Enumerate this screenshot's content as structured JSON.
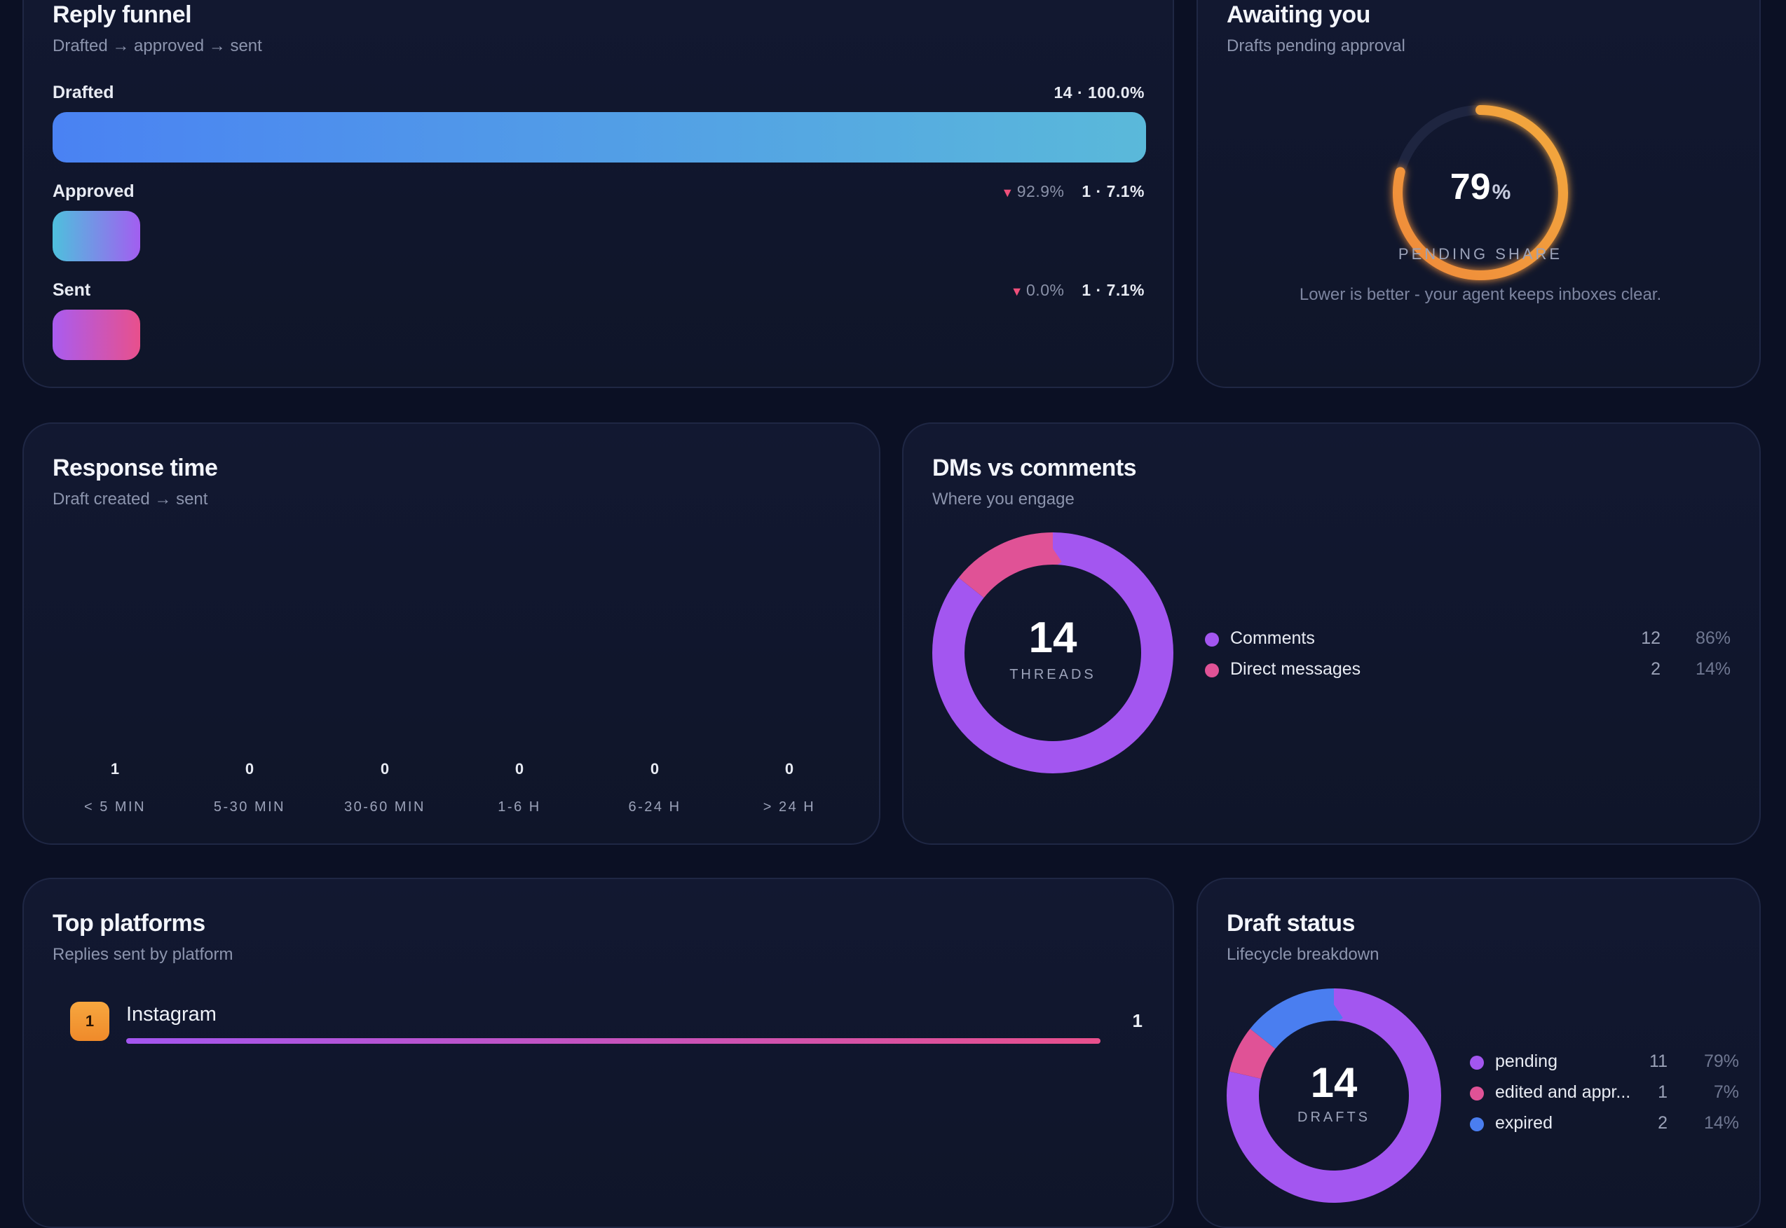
{
  "funnel": {
    "title": "Reply funnel",
    "subtitle": "Drafted → approved → sent",
    "stages": [
      {
        "label": "Drafted",
        "drop": "",
        "stat": "14 · 100.0%",
        "fraction": 1.0
      },
      {
        "label": "Approved",
        "drop": "92.9%",
        "stat": "1 · 7.1%",
        "fraction": 0.071
      },
      {
        "label": "Sent",
        "drop": "0.0%",
        "stat": "1 · 7.1%",
        "fraction": 0.071
      }
    ]
  },
  "awaiting": {
    "title": "Awaiting you",
    "subtitle": "Drafts pending approval",
    "value": "79",
    "unit": "%",
    "fraction": 0.79,
    "label": "PENDING SHARE",
    "note": "Lower is better - your agent keeps inboxes clear."
  },
  "response": {
    "title": "Response time",
    "subtitle": "Draft created → sent",
    "buckets": [
      {
        "label": "< 5 MIN",
        "value": "1"
      },
      {
        "label": "5-30 MIN",
        "value": "0"
      },
      {
        "label": "30-60 MIN",
        "value": "0"
      },
      {
        "label": "1-6 H",
        "value": "0"
      },
      {
        "label": "6-24 H",
        "value": "0"
      },
      {
        "label": "> 24 H",
        "value": "0"
      }
    ]
  },
  "dms": {
    "title": "DMs vs comments",
    "subtitle": "Where you engage",
    "total": "14",
    "total_label": "THREADS",
    "items": [
      {
        "name": "Comments",
        "count": "12",
        "pct": "86%",
        "color": "#a356f0",
        "fraction": 0.857
      },
      {
        "name": "Direct messages",
        "count": "2",
        "pct": "14%",
        "color": "#e05296",
        "fraction": 0.143
      }
    ]
  },
  "platforms": {
    "title": "Top platforms",
    "subtitle": "Replies sent by platform",
    "items": [
      {
        "rank": "1",
        "name": "Instagram",
        "count": "1",
        "fraction": 1.0
      }
    ]
  },
  "draft_status": {
    "title": "Draft status",
    "subtitle": "Lifecycle breakdown",
    "total": "14",
    "total_label": "DRAFTS",
    "items": [
      {
        "name": "pending",
        "count": "11",
        "pct": "79%",
        "color": "#a356f0",
        "fraction": 0.786
      },
      {
        "name": "edited and appr...",
        "count": "1",
        "pct": "7%",
        "color": "#e05296",
        "fraction": 0.071
      },
      {
        "name": "expired",
        "count": "2",
        "pct": "14%",
        "color": "#4a7ef0",
        "fraction": 0.143
      }
    ]
  }
}
